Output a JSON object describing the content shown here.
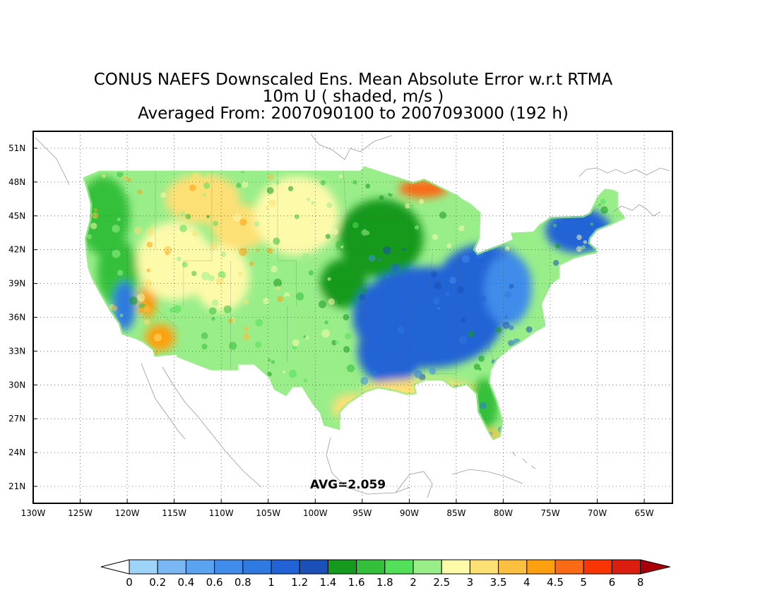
{
  "title": {
    "line1": "CONUS NAEFS Downscaled Ens. Mean Absolute Error w.r.t RTMA",
    "line2": "10m U ( shaded, m/s )",
    "line3": "Averaged From: 2007090100 to 2007093000 (192 h)"
  },
  "map": {
    "lon_range": [
      -130,
      -62
    ],
    "lat_range": [
      19.5,
      52.5
    ],
    "lat_labels": [
      "51N",
      "48N",
      "45N",
      "42N",
      "39N",
      "36N",
      "33N",
      "30N",
      "27N",
      "24N",
      "21N"
    ],
    "lat_values": [
      51,
      48,
      45,
      42,
      39,
      36,
      33,
      30,
      27,
      24,
      21
    ],
    "lon_labels": [
      "130W",
      "125W",
      "120W",
      "115W",
      "110W",
      "105W",
      "100W",
      "95W",
      "90W",
      "85W",
      "80W",
      "75W",
      "70W",
      "65W"
    ],
    "lon_values": [
      -130,
      -125,
      -120,
      -115,
      -110,
      -105,
      -100,
      -95,
      -90,
      -85,
      -80,
      -75,
      -70,
      -65
    ],
    "avg_text": "AVG=2.059",
    "regions": [
      {
        "name": "west-coast-mountains",
        "level": 1.7
      },
      {
        "name": "california-central-valley",
        "level": 0.9
      },
      {
        "name": "southern-california",
        "level": 4.0
      },
      {
        "name": "great-basin",
        "level": 2.8
      },
      {
        "name": "northern-rockies",
        "level": 3.2
      },
      {
        "name": "northern-plains",
        "level": 2.8
      },
      {
        "name": "southern-plains",
        "level": 2.2
      },
      {
        "name": "midwest",
        "level": 1.5
      },
      {
        "name": "lake-superior",
        "level": 4.5
      },
      {
        "name": "eastern-us",
        "level": 1.0
      },
      {
        "name": "appalachians",
        "level": 0.7
      },
      {
        "name": "new-england",
        "level": 1.1
      },
      {
        "name": "gulf-coast",
        "level": 3.0
      },
      {
        "name": "florida",
        "level": 1.7
      },
      {
        "name": "florida-keys",
        "level": 3.5
      }
    ]
  },
  "colorbar": {
    "labels": [
      "0",
      "0.2",
      "0.4",
      "0.6",
      "0.8",
      "1",
      "1.2",
      "1.4",
      "1.6",
      "1.8",
      "2",
      "2.5",
      "3",
      "3.5",
      "4",
      "4.5",
      "5",
      "6",
      "8"
    ],
    "colors": [
      "#9fd4fa",
      "#7ab8f5",
      "#5aa2f2",
      "#3f8ceb",
      "#2f7ae0",
      "#2163d6",
      "#1a50b8",
      "#159a1e",
      "#34c03a",
      "#52e05a",
      "#99ee8a",
      "#fdfaaa",
      "#fde074",
      "#fcc040",
      "#fda010",
      "#fb6a14",
      "#fb3404",
      "#dc1e10",
      "#a8000a"
    ]
  }
}
